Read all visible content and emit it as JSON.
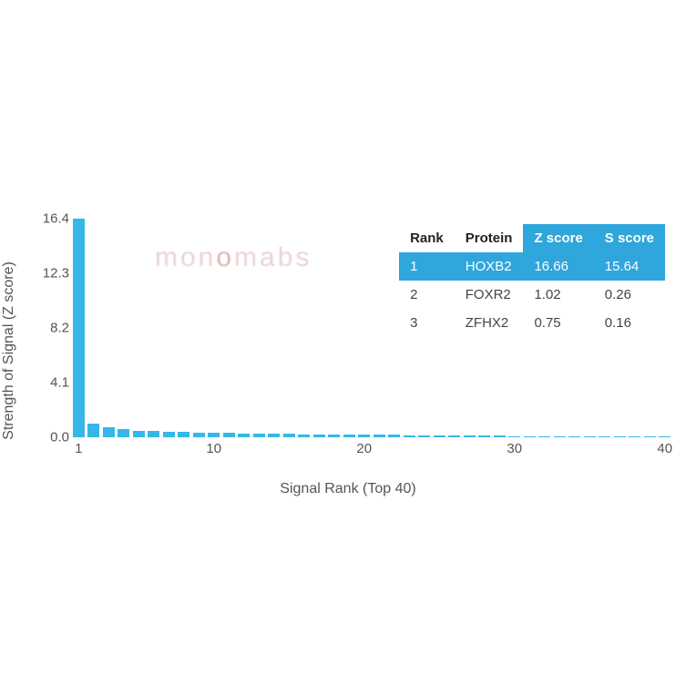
{
  "chart": {
    "type": "bar",
    "y_label": "Strength of Signal (Z score)",
    "x_label": "Signal Rank (Top 40)",
    "bar_color": "#36b7e8",
    "font_color": "#555555",
    "background_color": "#ffffff",
    "y_ticks": [
      "0.0",
      "4.1",
      "8.2",
      "12.3",
      "16.4"
    ],
    "y_max": 16.4,
    "x_ticks": [
      "1",
      "10",
      "20",
      "30",
      "40"
    ],
    "x_tick_values": [
      1,
      10,
      20,
      30,
      40
    ],
    "x_min": 1,
    "x_max": 40,
    "values": [
      16.66,
      1.02,
      0.75,
      0.6,
      0.5,
      0.45,
      0.4,
      0.38,
      0.35,
      0.33,
      0.31,
      0.29,
      0.28,
      0.27,
      0.25,
      0.24,
      0.23,
      0.22,
      0.21,
      0.2,
      0.19,
      0.18,
      0.17,
      0.16,
      0.15,
      0.14,
      0.13,
      0.12,
      0.11,
      0.1,
      0.1,
      0.09,
      0.08,
      0.08,
      0.07,
      0.07,
      0.06,
      0.06,
      0.05,
      0.05
    ],
    "bar_width_ratio": 0.8,
    "label_fontsize": 16,
    "tick_fontsize": 15
  },
  "watermark": {
    "text_before": "mon",
    "text_accent": "o",
    "text_after": "mabs",
    "color": "#d9b0b0",
    "accent_color": "#c07878",
    "fontsize": 30
  },
  "table": {
    "columns": [
      "Rank",
      "Protein",
      "Z score",
      "S score"
    ],
    "highlight_columns": [
      2,
      3
    ],
    "highlight_row": 0,
    "header_bg_highlight": "#2fa6dc",
    "row_bg_highlight": "#2fa6dc",
    "highlight_text_color": "#ffffff",
    "text_color": "#444444",
    "rows": [
      [
        "1",
        "HOXB2",
        "16.66",
        "15.64"
      ],
      [
        "2",
        "FOXR2",
        "1.02",
        "0.26"
      ],
      [
        "3",
        "ZFHX2",
        "0.75",
        "0.16"
      ]
    ]
  }
}
